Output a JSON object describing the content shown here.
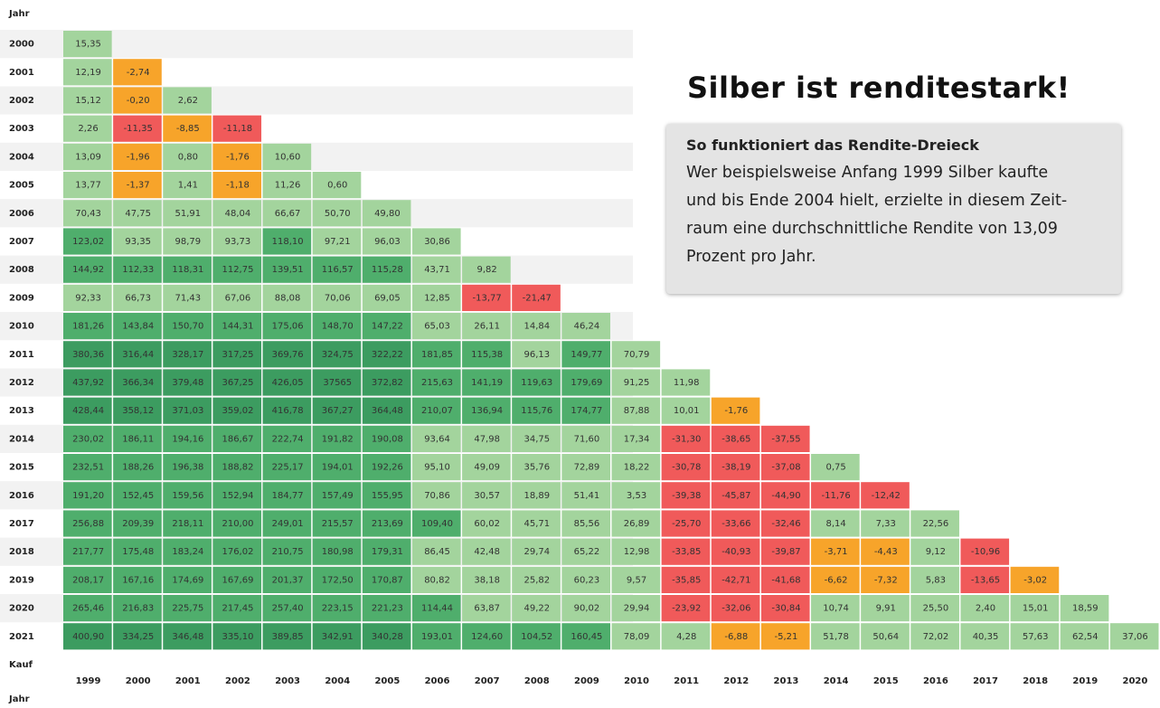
{
  "header": {
    "row_axis": "Jahr",
    "col_axis_top": "Kauf",
    "col_axis_bottom": "Jahr"
  },
  "headline": "Silber ist renditestark!",
  "info": {
    "title": "So funktioniert das Rendite-Dreieck",
    "lines": [
      "Wer beispielsweise Anfang 1999 Silber kaufte",
      "und bis Ende 2004 hielt, erzielte in diesem Zeit-",
      "raum eine durchschnittliche Rendite von 13,09",
      "Prozent pro Jahr."
    ]
  },
  "table": {
    "columns": [
      "1999",
      "2000",
      "2001",
      "2002",
      "2003",
      "2004",
      "2005",
      "2006",
      "2007",
      "2008",
      "2009",
      "2010",
      "2011",
      "2012",
      "2013",
      "2014",
      "2015",
      "2016",
      "2017",
      "2018",
      "2019",
      "2020"
    ],
    "rows": [
      {
        "year": "2000",
        "cells": [
          "15,35"
        ]
      },
      {
        "year": "2001",
        "cells": [
          "12,19",
          "-2,74"
        ]
      },
      {
        "year": "2002",
        "cells": [
          "15,12",
          "-0,20",
          "2,62"
        ]
      },
      {
        "year": "2003",
        "cells": [
          "2,26",
          "-11,35",
          "-8,85",
          "-11,18"
        ]
      },
      {
        "year": "2004",
        "cells": [
          "13,09",
          "-1,96",
          "0,80",
          "-1,76",
          "10,60"
        ]
      },
      {
        "year": "2005",
        "cells": [
          "13,77",
          "-1,37",
          "1,41",
          "-1,18",
          "11,26",
          "0,60"
        ]
      },
      {
        "year": "2006",
        "cells": [
          "70,43",
          "47,75",
          "51,91",
          "48,04",
          "66,67",
          "50,70",
          "49,80"
        ]
      },
      {
        "year": "2007",
        "cells": [
          "123,02",
          "93,35",
          "98,79",
          "93,73",
          "118,10",
          "97,21",
          "96,03",
          "30,86"
        ]
      },
      {
        "year": "2008",
        "cells": [
          "144,92",
          "112,33",
          "118,31",
          "112,75",
          "139,51",
          "116,57",
          "115,28",
          "43,71",
          "9,82"
        ]
      },
      {
        "year": "2009",
        "cells": [
          "92,33",
          "66,73",
          "71,43",
          "67,06",
          "88,08",
          "70,06",
          "69,05",
          "12,85",
          "-13,77",
          "-21,47"
        ]
      },
      {
        "year": "2010",
        "cells": [
          "181,26",
          "143,84",
          "150,70",
          "144,31",
          "175,06",
          "148,70",
          "147,22",
          "65,03",
          "26,11",
          "14,84",
          "46,24"
        ]
      },
      {
        "year": "2011",
        "cells": [
          "380,36",
          "316,44",
          "328,17",
          "317,25",
          "369,76",
          "324,75",
          "322,22",
          "181,85",
          "115,38",
          "96,13",
          "149,77",
          "70,79"
        ]
      },
      {
        "year": "2012",
        "cells": [
          "437,92",
          "366,34",
          "379,48",
          "367,25",
          "426,05",
          "37565",
          "372,82",
          "215,63",
          "141,19",
          "119,63",
          "179,69",
          "91,25",
          "11,98"
        ]
      },
      {
        "year": "2013",
        "cells": [
          "428,44",
          "358,12",
          "371,03",
          "359,02",
          "416,78",
          "367,27",
          "364,48",
          "210,07",
          "136,94",
          "115,76",
          "174,77",
          "87,88",
          "10,01",
          "-1,76"
        ]
      },
      {
        "year": "2014",
        "cells": [
          "230,02",
          "186,11",
          "194,16",
          "186,67",
          "222,74",
          "191,82",
          "190,08",
          "93,64",
          "47,98",
          "34,75",
          "71,60",
          "17,34",
          "-31,30",
          "-38,65",
          "-37,55"
        ]
      },
      {
        "year": "2015",
        "cells": [
          "232,51",
          "188,26",
          "196,38",
          "188,82",
          "225,17",
          "194,01",
          "192,26",
          "95,10",
          "49,09",
          "35,76",
          "72,89",
          "18,22",
          "-30,78",
          "-38,19",
          "-37,08",
          "0,75"
        ]
      },
      {
        "year": "2016",
        "cells": [
          "191,20",
          "152,45",
          "159,56",
          "152,94",
          "184,77",
          "157,49",
          "155,95",
          "70,86",
          "30,57",
          "18,89",
          "51,41",
          "3,53",
          "-39,38",
          "-45,87",
          "-44,90",
          "-11,76",
          "-12,42"
        ]
      },
      {
        "year": "2017",
        "cells": [
          "256,88",
          "209,39",
          "218,11",
          "210,00",
          "249,01",
          "215,57",
          "213,69",
          "109,40",
          "60,02",
          "45,71",
          "85,56",
          "26,89",
          "-25,70",
          "-33,66",
          "-32,46",
          "8,14",
          "7,33",
          "22,56"
        ]
      },
      {
        "year": "2018",
        "cells": [
          "217,77",
          "175,48",
          "183,24",
          "176,02",
          "210,75",
          "180,98",
          "179,31",
          "86,45",
          "42,48",
          "29,74",
          "65,22",
          "12,98",
          "-33,85",
          "-40,93",
          "-39,87",
          "-3,71",
          "-4,43",
          "9,12",
          "-10,96"
        ]
      },
      {
        "year": "2019",
        "cells": [
          "208,17",
          "167,16",
          "174,69",
          "167,69",
          "201,37",
          "172,50",
          "170,87",
          "80,82",
          "38,18",
          "25,82",
          "60,23",
          "9,57",
          "-35,85",
          "-42,71",
          "-41,68",
          "-6,62",
          "-7,32",
          "5,83",
          "-13,65",
          "-3,02"
        ]
      },
      {
        "year": "2020",
        "cells": [
          "265,46",
          "216,83",
          "225,75",
          "217,45",
          "257,40",
          "223,15",
          "221,23",
          "114,44",
          "63,87",
          "49,22",
          "90,02",
          "29,94",
          "-23,92",
          "-32,06",
          "-30,84",
          "10,74",
          "9,91",
          "25,50",
          "2,40",
          "15,01",
          "18,59"
        ]
      },
      {
        "year": "2021",
        "cells": [
          "400,90",
          "334,25",
          "346,48",
          "335,10",
          "389,85",
          "342,91",
          "340,28",
          "193,01",
          "124,60",
          "104,52",
          "160,45",
          "78,09",
          "4,28",
          "-6,88",
          "-5,21",
          "51,78",
          "50,64",
          "72,02",
          "40,35",
          "57,63",
          "62,54",
          "37,06"
        ]
      }
    ]
  }
}
